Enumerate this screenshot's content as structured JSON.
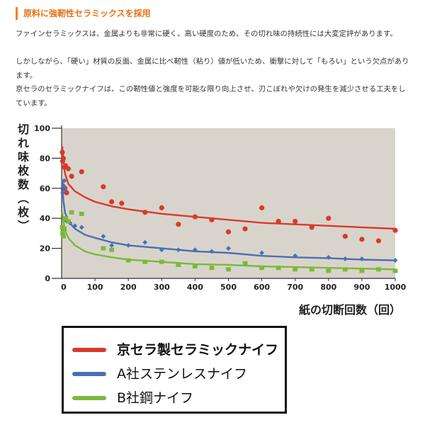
{
  "heading": "原料に強靭性セラミックスを採用",
  "paragraphs": [
    "ファインセラミックスは、金属よりも非常に硬く、高い硬度のため、その切れ味の持続性には大変定評があります。",
    "しかしながら、「硬い」材質の反面、金属に比べ靭性（粘り）値が低いため、衝撃に対して「もろい」という欠点があります。",
    "京セラのセラミックナイフは、この靭性値と強度を可能な限り向上させ、刃こぼれや欠けの発生を減少させる工夫をしています。"
  ],
  "colors": {
    "accent": "#e8731a",
    "plot_bg": "#d9d4cb",
    "kyocera": "#d83a2e",
    "a_steel": "#4a6fb5",
    "b_steel": "#7cb83c"
  },
  "chart_data": {
    "type": "scatter",
    "ylabel": "切れ味枚数（枚）",
    "xlabel": "紙の切断回数（回）",
    "xlim": [
      0,
      1000
    ],
    "ylim": [
      0,
      100
    ],
    "xticks": [
      100,
      200,
      300,
      400,
      500,
      600,
      700,
      800,
      900,
      1000
    ],
    "yticks": [
      0,
      20,
      40,
      60,
      80,
      100
    ],
    "grid": false,
    "series": [
      {
        "name": "京セラ製セラミックナイフ",
        "color": "#d83a2e",
        "marker": "circle",
        "points": [
          [
            2,
            84
          ],
          [
            3,
            78
          ],
          [
            5,
            80
          ],
          [
            8,
            74
          ],
          [
            10,
            60
          ],
          [
            12,
            75
          ],
          [
            15,
            57
          ],
          [
            20,
            73
          ],
          [
            30,
            68
          ],
          [
            60,
            71
          ],
          [
            125,
            61
          ],
          [
            150,
            51
          ],
          [
            180,
            50
          ],
          [
            250,
            44
          ],
          [
            300,
            47
          ],
          [
            350,
            36
          ],
          [
            400,
            41
          ],
          [
            450,
            39
          ],
          [
            500,
            31
          ],
          [
            550,
            33
          ],
          [
            600,
            47
          ],
          [
            650,
            38
          ],
          [
            700,
            38
          ],
          [
            750,
            34
          ],
          [
            800,
            40
          ],
          [
            850,
            28
          ],
          [
            900,
            26
          ],
          [
            950,
            25
          ],
          [
            1000,
            32
          ]
        ],
        "fit": [
          [
            2,
            88
          ],
          [
            5,
            78
          ],
          [
            10,
            70
          ],
          [
            20,
            63
          ],
          [
            40,
            58
          ],
          [
            70,
            54
          ],
          [
            100,
            51
          ],
          [
            150,
            48
          ],
          [
            200,
            46
          ],
          [
            300,
            43
          ],
          [
            400,
            41
          ],
          [
            500,
            39
          ],
          [
            600,
            37
          ],
          [
            700,
            36
          ],
          [
            800,
            35
          ],
          [
            900,
            34
          ],
          [
            1000,
            33
          ]
        ]
      },
      {
        "name": "A社ステンレスナイフ",
        "color": "#4a6fb5",
        "marker": "diamond",
        "points": [
          [
            3,
            57
          ],
          [
            5,
            62
          ],
          [
            8,
            65
          ],
          [
            10,
            59
          ],
          [
            15,
            38
          ],
          [
            25,
            37
          ],
          [
            40,
            35
          ],
          [
            60,
            34
          ],
          [
            125,
            28
          ],
          [
            150,
            22
          ],
          [
            200,
            22
          ],
          [
            250,
            24
          ],
          [
            300,
            19
          ],
          [
            350,
            19
          ],
          [
            400,
            19
          ],
          [
            450,
            18
          ],
          [
            500,
            20
          ],
          [
            600,
            17
          ],
          [
            700,
            15
          ],
          [
            800,
            14
          ],
          [
            850,
            13
          ],
          [
            900,
            13
          ],
          [
            1000,
            12
          ]
        ],
        "fit": [
          [
            2,
            66
          ],
          [
            5,
            52
          ],
          [
            10,
            44
          ],
          [
            20,
            38
          ],
          [
            40,
            33
          ],
          [
            70,
            29
          ],
          [
            100,
            27
          ],
          [
            150,
            24
          ],
          [
            200,
            22
          ],
          [
            300,
            20
          ],
          [
            400,
            18
          ],
          [
            500,
            17
          ],
          [
            600,
            15
          ],
          [
            700,
            14
          ],
          [
            800,
            13.5
          ],
          [
            900,
            12.5
          ],
          [
            1000,
            12
          ]
        ]
      },
      {
        "name": "B社鋼ナイフ",
        "color": "#7cb83c",
        "marker": "square",
        "points": [
          [
            2,
            34
          ],
          [
            3,
            30
          ],
          [
            5,
            28
          ],
          [
            8,
            33
          ],
          [
            12,
            40
          ],
          [
            20,
            38
          ],
          [
            30,
            44
          ],
          [
            60,
            43
          ],
          [
            125,
            20
          ],
          [
            150,
            19
          ],
          [
            200,
            12
          ],
          [
            250,
            11
          ],
          [
            300,
            11
          ],
          [
            350,
            9
          ],
          [
            400,
            8
          ],
          [
            450,
            7
          ],
          [
            500,
            6
          ],
          [
            550,
            10
          ],
          [
            600,
            7
          ],
          [
            650,
            7
          ],
          [
            700,
            6
          ],
          [
            750,
            6
          ],
          [
            800,
            5
          ],
          [
            850,
            6
          ],
          [
            900,
            5
          ],
          [
            950,
            6
          ],
          [
            1000,
            5
          ]
        ],
        "fit": [
          [
            2,
            44
          ],
          [
            5,
            38
          ],
          [
            10,
            32
          ],
          [
            20,
            27
          ],
          [
            40,
            22
          ],
          [
            70,
            18
          ],
          [
            100,
            16
          ],
          [
            150,
            14
          ],
          [
            200,
            12.5
          ],
          [
            300,
            11
          ],
          [
            400,
            9.5
          ],
          [
            500,
            9
          ],
          [
            600,
            8
          ],
          [
            700,
            7.5
          ],
          [
            800,
            7
          ],
          [
            900,
            6.5
          ],
          [
            1000,
            6
          ]
        ]
      }
    ]
  }
}
